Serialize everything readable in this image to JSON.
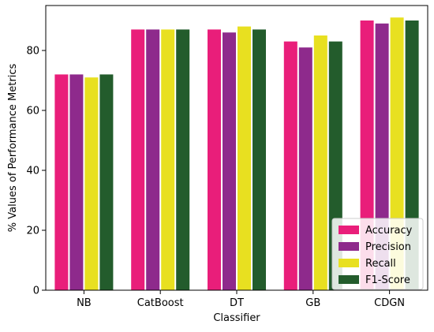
{
  "chart_data": {
    "type": "bar",
    "title": "",
    "xlabel": "Classifier",
    "ylabel": "% Values of Performance Metrics",
    "categories": [
      "NB",
      "CatBoost",
      "DT",
      "GB",
      "CDGN"
    ],
    "series": [
      {
        "name": "Accuracy",
        "values": [
          72,
          87,
          87,
          83,
          90
        ],
        "color": "#e91e7a"
      },
      {
        "name": "Precision",
        "values": [
          72,
          87,
          86,
          81,
          89
        ],
        "color": "#8e2a8c"
      },
      {
        "name": "Recall",
        "values": [
          71,
          87,
          88,
          85,
          91
        ],
        "color": "#e8e020"
      },
      {
        "name": "F1-Score",
        "values": [
          72,
          87,
          87,
          83,
          90
        ],
        "color": "#235c2c"
      }
    ],
    "ylim": [
      0,
      95
    ],
    "yticks": [
      0,
      20,
      40,
      60,
      80
    ],
    "grid": false,
    "legend_position": "bottom-right"
  }
}
